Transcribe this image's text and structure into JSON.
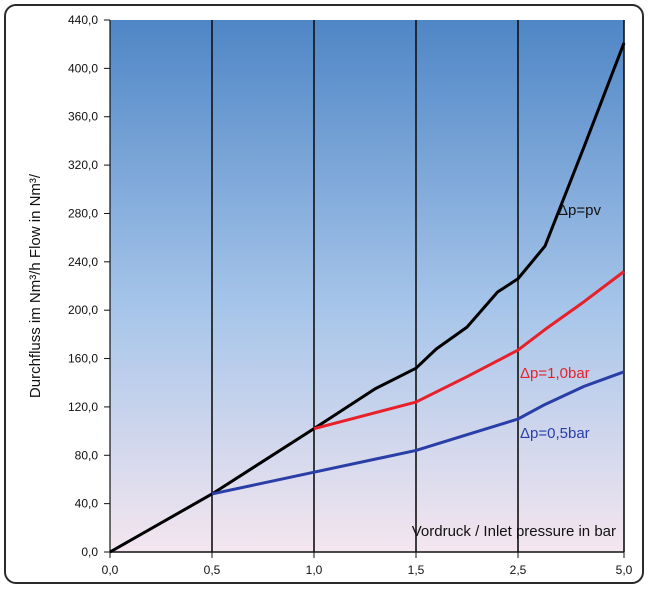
{
  "chart_data": {
    "type": "line",
    "xlabel": "Vordruck / Inlet pressure in bar",
    "ylabel": "Durchfluss im Nm³/h  Flow in Nm³/",
    "categories": [
      "0,0",
      "0,5",
      "1,0",
      "1,5",
      "2,5",
      "5,0"
    ],
    "y_ticks": [
      "0,0",
      "40,0",
      "80,0",
      "120,0",
      "160,0",
      "200,0",
      "240,0",
      "280,0",
      "320,0",
      "360,0",
      "400,0",
      "440,0"
    ],
    "ylim": [
      0,
      440
    ],
    "grid": "vertical lines at each category",
    "series": [
      {
        "name": "Δp=pv",
        "color": "#000000",
        "x": [
          0,
          0.5,
          1.0,
          1.3,
          1.5,
          1.7,
          2.0,
          2.3,
          2.5,
          3.0,
          4.0,
          5.0
        ],
        "y": [
          0,
          48,
          102,
          135,
          152,
          168,
          186,
          215,
          226,
          253,
          335,
          421
        ]
      },
      {
        "name": "Δp=1,0bar",
        "color": "#e8202a",
        "x": [
          1.0,
          1.5,
          2.0,
          2.5,
          3.0,
          4.0,
          5.0
        ],
        "y": [
          102,
          124,
          145,
          167,
          184,
          207,
          232
        ]
      },
      {
        "name": "Δp=0,5bar",
        "color": "#2a3ea8",
        "x": [
          0.5,
          1.0,
          1.5,
          2.0,
          2.5,
          3.0,
          4.0,
          5.0
        ],
        "y": [
          48,
          66,
          84,
          97,
          110,
          122,
          137,
          149
        ]
      }
    ],
    "background_gradient": [
      "#4f86c6",
      "#a8c6ea",
      "#f4e6ef"
    ]
  }
}
